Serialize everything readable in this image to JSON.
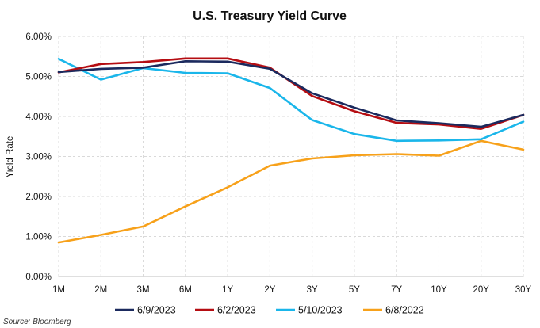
{
  "chart_data": {
    "type": "line",
    "title": "U.S. Treasury Yield Curve",
    "ylabel": "Yield Rate",
    "xlabel": "",
    "categories": [
      "1M",
      "2M",
      "3M",
      "6M",
      "1Y",
      "2Y",
      "3Y",
      "5Y",
      "7Y",
      "10Y",
      "20Y",
      "30Y"
    ],
    "ylim": [
      0,
      6
    ],
    "yticks": [
      "0.00%",
      "1.00%",
      "2.00%",
      "3.00%",
      "4.00%",
      "5.00%",
      "6.00%"
    ],
    "grid": true,
    "legend_position": "bottom",
    "series": [
      {
        "name": "6/9/2023",
        "color": "#1b2a5e",
        "values": [
          5.11,
          5.19,
          5.22,
          5.38,
          5.37,
          5.19,
          4.58,
          4.22,
          3.9,
          3.83,
          3.74,
          4.04
        ]
      },
      {
        "name": "6/2/2023",
        "color": "#b50d12",
        "values": [
          5.1,
          5.31,
          5.36,
          5.45,
          5.45,
          5.22,
          4.51,
          4.13,
          3.84,
          3.8,
          3.69,
          4.04
        ]
      },
      {
        "name": "5/10/2023",
        "color": "#1ab6ea",
        "values": [
          5.44,
          4.92,
          5.21,
          5.09,
          5.08,
          4.71,
          3.91,
          3.56,
          3.39,
          3.4,
          3.43,
          3.87
        ]
      },
      {
        "name": "6/8/2022",
        "color": "#f7a11a",
        "values": [
          0.85,
          1.04,
          1.25,
          1.75,
          2.23,
          2.77,
          2.95,
          3.03,
          3.06,
          3.02,
          3.39,
          3.17
        ]
      }
    ],
    "source": "Source: Bloomberg"
  }
}
